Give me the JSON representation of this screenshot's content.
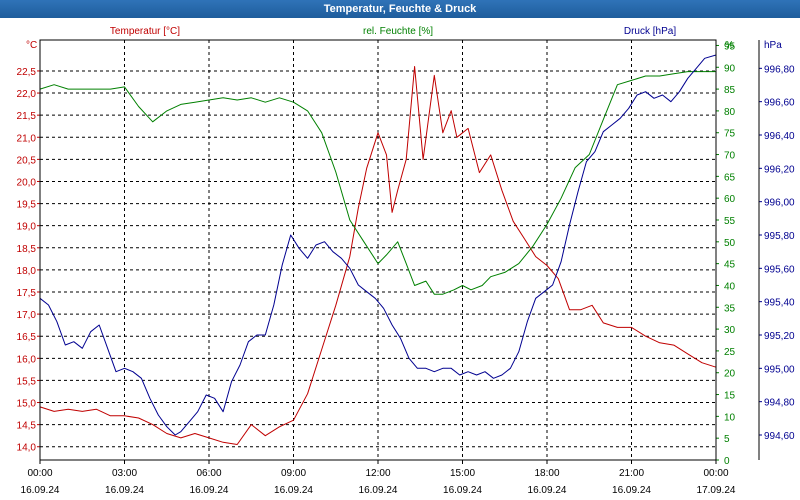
{
  "window": {
    "title": "Temperatur, Feuchte & Druck"
  },
  "chart_data": {
    "type": "line",
    "title": "Temperatur, Feuchte & Druck",
    "x_ticks": [
      {
        "time": "00:00",
        "date": "16.09.24"
      },
      {
        "time": "03:00",
        "date": "16.09.24"
      },
      {
        "time": "06:00",
        "date": "16.09.24"
      },
      {
        "time": "09:00",
        "date": "16.09.24"
      },
      {
        "time": "12:00",
        "date": "16.09.24"
      },
      {
        "time": "15:00",
        "date": "16.09.24"
      },
      {
        "time": "18:00",
        "date": "16.09.24"
      },
      {
        "time": "21:00",
        "date": "16.09.24"
      },
      {
        "time": "00:00",
        "date": "17.09.24"
      }
    ],
    "xlim": [
      0,
      24
    ],
    "axes": {
      "left": {
        "label": "Temperatur [°C]",
        "unit": "°C",
        "color": "#c00000",
        "min": 13.7,
        "max": 23.2,
        "ticks": [
          "14,0",
          "14,5",
          "15,0",
          "15,5",
          "16,0",
          "16,5",
          "17,0",
          "17,5",
          "18,0",
          "18,5",
          "19,0",
          "19,5",
          "20,0",
          "20,5",
          "21,0",
          "21,5",
          "22,0",
          "22,5"
        ],
        "tick_values": [
          14.0,
          14.5,
          15.0,
          15.5,
          16.0,
          16.5,
          17.0,
          17.5,
          18.0,
          18.5,
          19.0,
          19.5,
          20.0,
          20.5,
          21.0,
          21.5,
          22.0,
          22.5
        ]
      },
      "middle": {
        "label": "rel. Feuchte [%]",
        "unit": "%",
        "color": "#008000",
        "min": 0,
        "max": 96.25,
        "ticks": [
          "0",
          "5",
          "10",
          "15",
          "20",
          "25",
          "30",
          "35",
          "40",
          "45",
          "50",
          "55",
          "60",
          "65",
          "70",
          "75",
          "80",
          "85",
          "90",
          "95"
        ],
        "tick_values": [
          0,
          5,
          10,
          15,
          20,
          25,
          30,
          35,
          40,
          45,
          50,
          55,
          60,
          65,
          70,
          75,
          80,
          85,
          90,
          95
        ]
      },
      "right": {
        "label": "Druck [hPa]",
        "unit": "hPa",
        "color": "#000090",
        "min": 994.45,
        "max": 996.97,
        "ticks": [
          "994,60",
          "994,80",
          "995,00",
          "995,20",
          "995,40",
          "995,60",
          "995,80",
          "996,00",
          "996,20",
          "996,40",
          "996,60",
          "996,80"
        ],
        "tick_values": [
          994.6,
          994.8,
          995.0,
          995.2,
          995.4,
          995.6,
          995.8,
          996.0,
          996.2,
          996.4,
          996.6,
          996.8
        ]
      }
    },
    "series": [
      {
        "name": "Temperatur [°C]",
        "axis": "left",
        "color": "#c00000",
        "x": [
          0,
          0.5,
          1,
          1.5,
          2,
          2.5,
          3,
          3.5,
          4,
          4.5,
          5,
          5.5,
          6,
          6.5,
          7,
          7.5,
          8,
          8.5,
          9,
          9.5,
          10,
          10.5,
          11,
          11.3,
          11.6,
          12,
          12.3,
          12.5,
          12.7,
          13,
          13.3,
          13.6,
          14,
          14.3,
          14.6,
          14.8,
          15.2,
          15.6,
          16,
          16.4,
          16.8,
          17.2,
          17.6,
          18,
          18.4,
          18.8,
          19.2,
          19.6,
          20,
          20.5,
          21,
          21.5,
          22,
          22.5,
          23,
          23.5,
          24
        ],
        "values": [
          14.9,
          14.8,
          14.85,
          14.8,
          14.85,
          14.7,
          14.7,
          14.65,
          14.5,
          14.3,
          14.2,
          14.3,
          14.2,
          14.1,
          14.05,
          14.5,
          14.25,
          14.45,
          14.6,
          15.2,
          16.2,
          17.2,
          18.3,
          19.4,
          20.3,
          21.1,
          20.6,
          19.3,
          19.8,
          20.5,
          22.6,
          20.5,
          22.4,
          21.1,
          21.6,
          21.0,
          21.2,
          20.2,
          20.6,
          19.8,
          19.1,
          18.7,
          18.3,
          18.1,
          17.8,
          17.1,
          17.1,
          17.2,
          16.8,
          16.7,
          16.7,
          16.5,
          16.35,
          16.3,
          16.1,
          15.9,
          15.8
        ]
      },
      {
        "name": "rel. Feuchte [%]",
        "axis": "middle",
        "color": "#008000",
        "x": [
          0,
          0.5,
          1,
          1.5,
          2,
          2.5,
          3,
          3.5,
          4,
          4.5,
          5,
          5.5,
          6,
          6.5,
          7,
          7.5,
          8,
          8.5,
          9,
          9.5,
          10,
          10.5,
          11,
          11.5,
          12,
          12.3,
          12.7,
          13,
          13.3,
          13.7,
          14,
          14.3,
          14.7,
          15,
          15.3,
          15.7,
          16,
          16.5,
          17,
          17.5,
          18,
          18.5,
          19,
          19.5,
          20,
          20.5,
          21,
          21.5,
          22,
          22.5,
          23,
          23.5,
          24
        ],
        "values": [
          85,
          86,
          85,
          85,
          85,
          85,
          85.5,
          81,
          77.5,
          80,
          81.5,
          82,
          82.5,
          83,
          82.5,
          83,
          82,
          83,
          82,
          80,
          75,
          66,
          55,
          50,
          45,
          47,
          50,
          45,
          40,
          41,
          38,
          38,
          39,
          40,
          39,
          40,
          42,
          43,
          45,
          49,
          54,
          60,
          67,
          70,
          78,
          86,
          87,
          88,
          88,
          88.5,
          89,
          89,
          89
        ]
      },
      {
        "name": "Druck [hPa]",
        "axis": "right",
        "color": "#000090",
        "x": [
          0,
          0.3,
          0.6,
          0.9,
          1.2,
          1.5,
          1.8,
          2.1,
          2.4,
          2.7,
          3,
          3.3,
          3.6,
          3.9,
          4.2,
          4.5,
          4.8,
          5,
          5.3,
          5.6,
          5.9,
          6.2,
          6.5,
          6.8,
          7.1,
          7.4,
          7.7,
          8,
          8.3,
          8.6,
          8.9,
          9.2,
          9.5,
          9.8,
          10.1,
          10.4,
          10.7,
          11,
          11.3,
          11.6,
          11.9,
          12.2,
          12.5,
          12.8,
          13.1,
          13.4,
          13.7,
          14,
          14.3,
          14.6,
          14.9,
          15.2,
          15.5,
          15.8,
          16.1,
          16.4,
          16.7,
          17,
          17.3,
          17.6,
          17.9,
          18.2,
          18.5,
          18.8,
          19.1,
          19.4,
          19.7,
          20,
          20.3,
          20.6,
          20.9,
          21.2,
          21.5,
          21.8,
          22.1,
          22.4,
          22.7,
          23,
          23.3,
          23.6,
          24
        ],
        "values": [
          995.42,
          995.38,
          995.28,
          995.14,
          995.16,
          995.12,
          995.22,
          995.26,
          995.12,
          994.98,
          995.0,
          994.98,
          994.94,
          994.82,
          994.72,
          994.65,
          994.6,
          994.62,
          994.68,
          994.74,
          994.84,
          994.82,
          994.74,
          994.92,
          995.02,
          995.16,
          995.2,
          995.2,
          995.38,
          995.62,
          995.8,
          995.72,
          995.66,
          995.74,
          995.76,
          995.7,
          995.66,
          995.6,
          995.5,
          995.46,
          995.42,
          995.36,
          995.26,
          995.18,
          995.06,
          995.0,
          995.0,
          994.98,
          995.0,
          995.0,
          994.96,
          994.98,
          994.96,
          994.98,
          994.94,
          994.96,
          995.0,
          995.1,
          995.28,
          995.42,
          995.46,
          995.5,
          995.64,
          995.86,
          996.06,
          996.24,
          996.3,
          996.42,
          996.46,
          996.5,
          996.56,
          996.64,
          996.66,
          996.62,
          996.64,
          996.6,
          996.66,
          996.74,
          996.8,
          996.86,
          996.88
        ]
      }
    ]
  }
}
